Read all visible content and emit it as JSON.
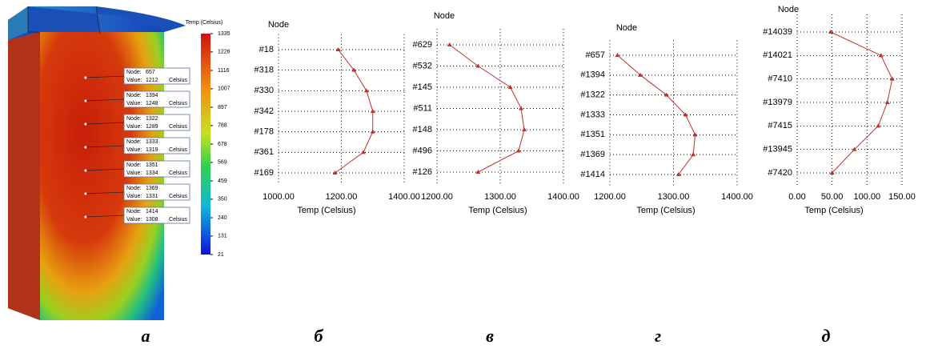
{
  "render": {
    "panel_label": "а",
    "colorbar": {
      "title": "Temp (Celsius)",
      "ticks": [
        1335,
        1226,
        1116,
        1007,
        897,
        788,
        678,
        569,
        459,
        350,
        240,
        131,
        21
      ]
    },
    "node_label": "Node:",
    "value_label": "Value:",
    "unit": "Celsius",
    "probes": [
      {
        "node": "657",
        "value": 1212
      },
      {
        "node": "1394",
        "value": 1248
      },
      {
        "node": "1322",
        "value": 1289
      },
      {
        "node": "1333",
        "value": 1319
      },
      {
        "node": "1351",
        "value": 1334
      },
      {
        "node": "1369",
        "value": 1331
      },
      {
        "node": "1414",
        "value": 1308
      }
    ]
  },
  "chart_data": [
    {
      "type": "line",
      "panel_label": "б",
      "y_label": "Node",
      "x_label": "Temp (Celsius)",
      "color": "#c0302a",
      "grid": true,
      "categories": [
        "#18",
        "#318",
        "#330",
        "#342",
        "#178",
        "#361",
        "#169"
      ],
      "values": [
        1190,
        1240,
        1280,
        1300,
        1300,
        1270,
        1180
      ],
      "xlim": [
        1000,
        1400
      ],
      "xticks": [
        {
          "value": 1000,
          "label": "1000.00"
        },
        {
          "value": 1200,
          "label": "1200.00"
        },
        {
          "value": 1400,
          "label": "1400.00"
        }
      ]
    },
    {
      "type": "line",
      "panel_label": "в",
      "y_label": "Node",
      "x_label": "Temp (Celsius)",
      "color": "#c0302a",
      "grid": true,
      "categories": [
        "#629",
        "#532",
        "#145",
        "#511",
        "#148",
        "#496",
        "#126"
      ],
      "values": [
        1220,
        1265,
        1316,
        1333,
        1338,
        1329,
        1265
      ],
      "xlim": [
        1200,
        1400
      ],
      "xticks": [
        {
          "value": 1200,
          "label": "1200.00"
        },
        {
          "value": 1300,
          "label": "1300.00"
        },
        {
          "value": 1400,
          "label": "1400.00"
        }
      ]
    },
    {
      "type": "line",
      "panel_label": "г",
      "y_label": "Node",
      "x_label": "Temp (Celsius)",
      "color": "#c0302a",
      "grid": true,
      "categories": [
        "#657",
        "#1394",
        "#1322",
        "#1333",
        "#1351",
        "#1369",
        "#1414"
      ],
      "values": [
        1212,
        1248,
        1289,
        1319,
        1334,
        1331,
        1308
      ],
      "xlim": [
        1200,
        1400
      ],
      "xticks": [
        {
          "value": 1200,
          "label": "1200.00"
        },
        {
          "value": 1300,
          "label": "1300.00"
        },
        {
          "value": 1400,
          "label": "1400.00"
        }
      ]
    },
    {
      "type": "line",
      "panel_label": "д",
      "y_label": "Node",
      "x_label": "Temp (Celsius)",
      "color": "#c0302a",
      "grid": true,
      "categories": [
        "#14039",
        "#14021",
        "#7410",
        "#13979",
        "#7415",
        "#13945",
        "#7420"
      ],
      "values": [
        48,
        120,
        136,
        129,
        116,
        82,
        50
      ],
      "xlim": [
        0,
        150
      ],
      "xticks": [
        {
          "value": 0,
          "label": "0.00"
        },
        {
          "value": 50,
          "label": "50.00"
        },
        {
          "value": 100,
          "label": "100.00"
        },
        {
          "value": 150,
          "label": "150.00"
        }
      ]
    }
  ]
}
